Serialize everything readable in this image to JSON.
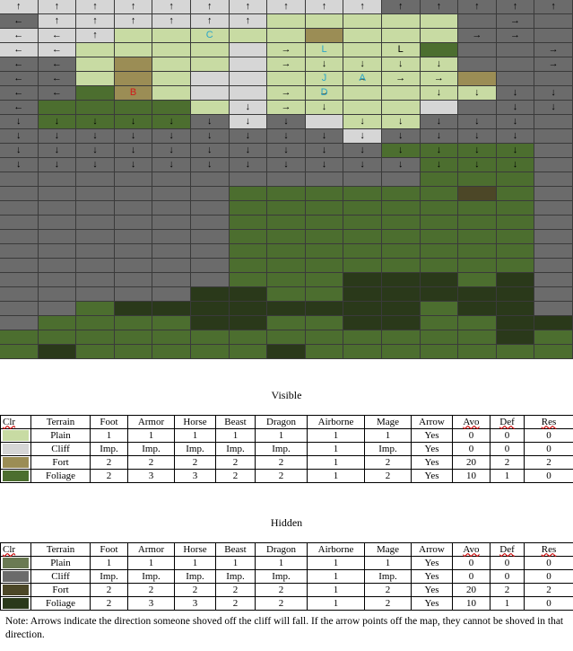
{
  "colors": {
    "V": "#c8dba3",
    "C": "#d6d6d6",
    "F": "#9b8d55",
    "G": "#4c6e2f",
    "hv": "#6a7a53",
    "hc": "#6b6b6b",
    "hf": "#4c4727",
    "hg": "#2a391a",
    "letter_c": "#2ba6c8",
    "letter_b": "#d11a1a"
  },
  "map": {
    "rows": [
      "CCCCCCCCCCHHHHH",
      "HCCCCCCVVVVVHHH",
      "CCCVVVVVFVVVHHH",
      "CCVVVVCVVVVGHHH",
      "HHVFVVCVVVVVHHH",
      "HHVFVCCVVVVVFHH",
      "HHGFVCCVVVVVVHH",
      "HGGGGVCVVVVCHHH",
      "HGGGGHCHCVVHHHH",
      "HHHHHHHHHCHHHHH",
      "HHHHHHHHHHGGGGH",
      "HHHHHHHHHHHGGGH",
      "HHHHHHHHHHHGGGH",
      "HHHHHHGGGGGGIGH",
      "HHHHHHGGGGGGGGH",
      "HHHHHHGGGGGGGGH",
      "HHHHHHGGGGGGGGH",
      "HHHHHHGGGGGGGGH",
      "HHHHHHGGGGGGGGH",
      "HHHHHHGGGJJJGJH",
      "HHHHHJJGGJJJJJH",
      "HHGJJJJJJJJGJJH",
      "HGGGGJJGGJJGGJJ",
      "GGGGGGGGGGGGGJG",
      "GJGGGGGJGGGGGGG"
    ],
    "arrows": [
      "↑↑↑↑↑↑↑↑↑↑↑↑↑↑↑",
      "←↑↑↑↑↑↑······→",
      "←←↑·········→→",
      "←←·····→··L···→",
      "←←·····→↓↓↓↓··→",
      "←←·······→→→···→",
      "←←·····→→··↓↓↓↓",
      "←·····↓→↓····↓↓↓",
      "↓↓↓↓↓↓↓↓·↓↓↓↓↓",
      "↓↓↓↓↓↓↓↓↓↓↓↓↓↓",
      "↓↓↓↓↓↓↓↓↓↓↓↓↓↓",
      "↓↓↓↓↓↓↓↓↓↓↓↓↓↓"
    ],
    "markers": [
      {
        "row": 2,
        "col": 5,
        "label": "C",
        "color": "letter_c"
      },
      {
        "row": 3,
        "col": 8,
        "label": "L",
        "color": "letter_c"
      },
      {
        "row": 5,
        "col": 8,
        "label": "J",
        "color": "letter_c"
      },
      {
        "row": 5,
        "col": 9,
        "label": "A",
        "color": "letter_c"
      },
      {
        "row": 6,
        "col": 3,
        "label": "B",
        "color": "letter_b"
      },
      {
        "row": 6,
        "col": 8,
        "label": "D",
        "color": "letter_c"
      }
    ]
  },
  "visible_heading": "Visible",
  "hidden_heading": "Hidden",
  "headers": [
    "Clr",
    "Terrain",
    "Foot",
    "Armor",
    "Horse",
    "Beast",
    "Dragon",
    "Airborne",
    "Mage",
    "Arrow",
    "Avo",
    "Def",
    "Res"
  ],
  "visible_rows": [
    {
      "swatch": "V",
      "cells": [
        "Plain",
        "1",
        "1",
        "1",
        "1",
        "1",
        "1",
        "1",
        "Yes",
        "0",
        "0",
        "0"
      ]
    },
    {
      "swatch": "C",
      "cells": [
        "Cliff",
        "Imp.",
        "Imp.",
        "Imp.",
        "Imp.",
        "Imp.",
        "1",
        "Imp.",
        "Yes",
        "0",
        "0",
        "0"
      ]
    },
    {
      "swatch": "F",
      "cells": [
        "Fort",
        "2",
        "2",
        "2",
        "2",
        "2",
        "1",
        "2",
        "Yes",
        "20",
        "2",
        "2"
      ]
    },
    {
      "swatch": "G",
      "cells": [
        "Foliage",
        "2",
        "3",
        "3",
        "2",
        "2",
        "1",
        "2",
        "Yes",
        "10",
        "1",
        "0"
      ]
    }
  ],
  "hidden_rows": [
    {
      "swatch": "hv",
      "cells": [
        "Plain",
        "1",
        "1",
        "1",
        "1",
        "1",
        "1",
        "1",
        "Yes",
        "0",
        "0",
        "0"
      ]
    },
    {
      "swatch": "hc",
      "cells": [
        "Cliff",
        "Imp.",
        "Imp.",
        "Imp.",
        "Imp.",
        "Imp.",
        "1",
        "Imp.",
        "Yes",
        "0",
        "0",
        "0"
      ]
    },
    {
      "swatch": "hf",
      "cells": [
        "Fort",
        "2",
        "2",
        "2",
        "2",
        "2",
        "1",
        "2",
        "Yes",
        "20",
        "2",
        "2"
      ]
    },
    {
      "swatch": "hg",
      "cells": [
        "Foliage",
        "2",
        "3",
        "3",
        "2",
        "2",
        "1",
        "2",
        "Yes",
        "10",
        "1",
        "0"
      ]
    }
  ],
  "note": "Note: Arrows indicate the direction someone shoved off the cliff will fall.  If the arrow points off the map, they cannot be shoved in that direction."
}
